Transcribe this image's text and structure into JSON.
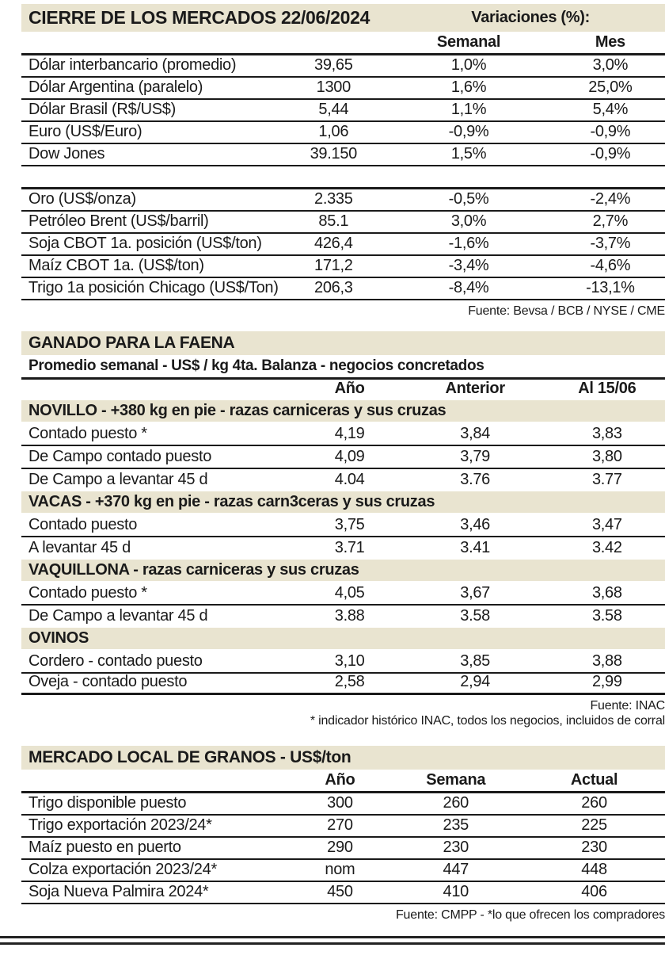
{
  "colors": {
    "header_bar": "#e9e4d0",
    "text": "#1a1a1a",
    "rule": "#1a1a1a"
  },
  "markets": {
    "title": "CIERRE DE LOS MERCADOS 22/06/2024",
    "variations_label": "Variaciones (%):",
    "col_semanal": "Semanal",
    "col_mes": "Mes",
    "block1": {
      "rows": [
        {
          "label": "Dólar interbancario (promedio)",
          "value": "39,65",
          "semanal": "1,0%",
          "mes": "3,0%"
        },
        {
          "label": "Dólar Argentina (paralelo)",
          "value": "1300",
          "semanal": "1,6%",
          "mes": "25,0%"
        },
        {
          "label": "Dólar Brasil (R$/US$)",
          "value": "5,44",
          "semanal": "1,1%",
          "mes": "5,4%"
        },
        {
          "label": "Euro (US$/Euro)",
          "value": "1,06",
          "semanal": "-0,9%",
          "mes": "-0,9%"
        },
        {
          "label": "Dow Jones",
          "value": "39.150",
          "semanal": "1,5%",
          "mes": "-0,9%"
        }
      ]
    },
    "block2": {
      "rows": [
        {
          "label": "Oro (US$/onza)",
          "value": "2.335",
          "semanal": "-0,5%",
          "mes": "-2,4%"
        },
        {
          "label": "Petróleo Brent (US$/barril)",
          "value": "85.1",
          "semanal": "3,0%",
          "mes": "2,7%"
        },
        {
          "label": "Soja CBOT 1a. posición (US$/ton)",
          "value": "426,4",
          "semanal": "-1,6%",
          "mes": "-3,7%"
        },
        {
          "label": "Maíz CBOT 1a. (US$/ton)",
          "value": "171,2",
          "semanal": "-3,4%",
          "mes": "-4,6%"
        },
        {
          "label": "Trigo 1a posición Chicago (US$/Ton)",
          "value": "206,3",
          "semanal": "-8,4%",
          "mes": "-13,1%"
        }
      ]
    },
    "source": "Fuente: Bevsa / BCB / NYSE / CME"
  },
  "cattle": {
    "title": "GANADO PARA LA FAENA",
    "subtitle": "Promedio semanal - US$ / kg 4ta. Balanza - negocios concretados",
    "col_ano": "Año",
    "col_anterior": "Anterior",
    "col_al": "Al 15/06",
    "groups": [
      {
        "header": "NOVILLO - +380 kg en pie - razas carniceras y sus cruzas",
        "rows": [
          {
            "label": "Contado puesto *",
            "ano": "4,19",
            "anterior": "3,84",
            "al": "3,83"
          },
          {
            "label": "De Campo contado puesto",
            "ano": "4,09",
            "anterior": "3,79",
            "al": "3,80"
          },
          {
            "label": "De Campo a levantar 45 d",
            "ano": "4.04",
            "anterior": "3.76",
            "al": "3.77"
          }
        ]
      },
      {
        "header": "VACAS - +370 kg en pie - razas carn3ceras y sus cruzas",
        "rows": [
          {
            "label": "Contado puesto",
            "ano": "3,75",
            "anterior": "3,46",
            "al": "3,47"
          },
          {
            "label": "A levantar 45 d",
            "ano": "3.71",
            "anterior": "3.41",
            "al": "3.42"
          }
        ]
      },
      {
        "header": "VAQUILLONA - razas carniceras y sus cruzas",
        "rows": [
          {
            "label": "Contado puesto *",
            "ano": "4,05",
            "anterior": "3,67",
            "al": "3,68"
          },
          {
            "label": "De Campo a levantar 45 d",
            "ano": "3.88",
            "anterior": "3.58",
            "al": "3.58"
          }
        ]
      },
      {
        "header": "OVINOS",
        "rows": [
          {
            "label": "Cordero - contado puesto",
            "ano": "3,10",
            "anterior": "3,85",
            "al": "3,88"
          },
          {
            "label": "Oveja - contado puesto",
            "ano": "2,58",
            "anterior": "2,94",
            "al": "2,99"
          }
        ]
      }
    ],
    "source": "Fuente: INAC",
    "footnote": "* indicador histórico INAC, todos los negocios, incluidos de corral"
  },
  "grains": {
    "title": "MERCADO LOCAL DE GRANOS - US$/ton",
    "col_ano": "Año",
    "col_semana": "Semana",
    "col_actual": "Actual",
    "rows": [
      {
        "label": "Trigo disponible puesto",
        "ano": "300",
        "semana": "260",
        "actual": "260"
      },
      {
        "label": "Trigo exportación 2023/24*",
        "ano": "270",
        "semana": "235",
        "actual": "225"
      },
      {
        "label": "Maíz puesto en puerto",
        "ano": "290",
        "semana": "230",
        "actual": "230"
      },
      {
        "label": "Colza exportación 2023/24*",
        "ano": "nom",
        "semana": "447",
        "actual": "448"
      },
      {
        "label": "Soja Nueva Palmira 2024*",
        "ano": "450",
        "semana": "410",
        "actual": "406"
      }
    ],
    "source": "Fuente: CMPP - *lo que ofrecen los compradores"
  }
}
